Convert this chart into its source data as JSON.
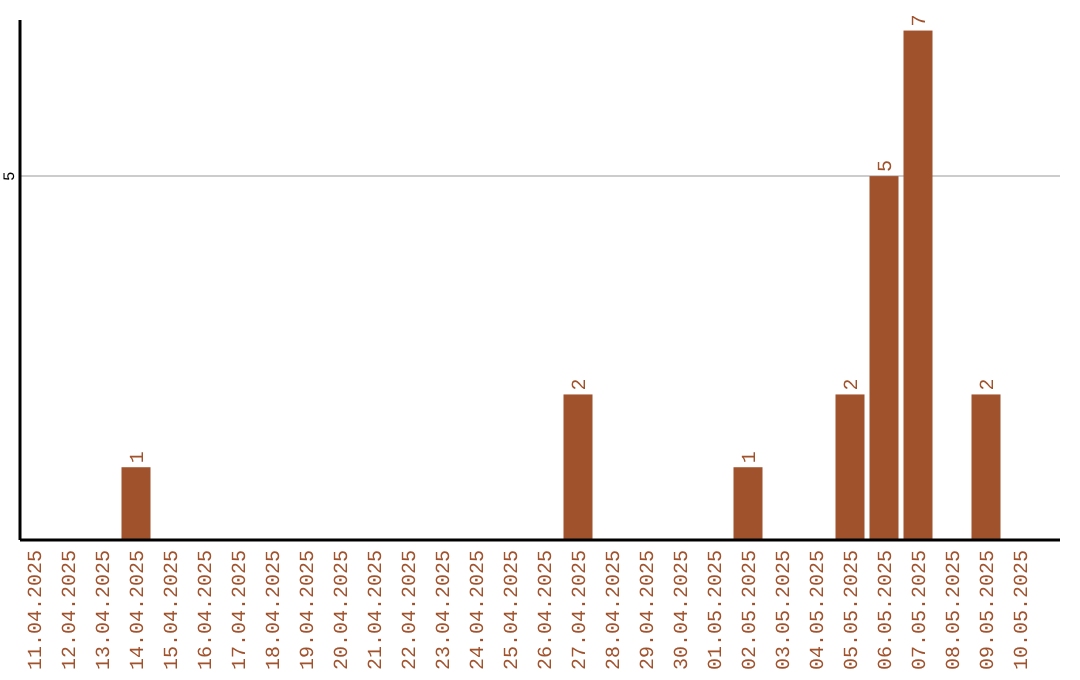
{
  "chart_data": {
    "type": "bar",
    "categories": [
      "11.04.2025",
      "12.04.2025",
      "13.04.2025",
      "14.04.2025",
      "15.04.2025",
      "16.04.2025",
      "17.04.2025",
      "18.04.2025",
      "19.04.2025",
      "20.04.2025",
      "21.04.2025",
      "22.04.2025",
      "23.04.2025",
      "24.04.2025",
      "25.04.2025",
      "26.04.2025",
      "27.04.2025",
      "28.04.2025",
      "29.04.2025",
      "30.04.2025",
      "01.05.2025",
      "02.05.2025",
      "03.05.2025",
      "04.05.2025",
      "05.05.2025",
      "06.05.2025",
      "07.05.2025",
      "08.05.2025",
      "09.05.2025",
      "10.05.2025"
    ],
    "values": [
      0,
      0,
      0,
      1,
      0,
      0,
      0,
      0,
      0,
      0,
      0,
      0,
      0,
      0,
      0,
      0,
      2,
      0,
      0,
      0,
      0,
      1,
      0,
      0,
      2,
      5,
      7,
      0,
      2,
      0
    ],
    "value_labels": [
      null,
      null,
      null,
      "1",
      null,
      null,
      null,
      null,
      null,
      null,
      null,
      null,
      null,
      null,
      null,
      null,
      "2",
      null,
      null,
      null,
      null,
      "1",
      null,
      null,
      "2",
      "5",
      "7",
      null,
      "2",
      null
    ],
    "color": "#a0522d",
    "ylim": [
      0,
      7.2
    ],
    "yticks": [
      5
    ],
    "grid": "y"
  }
}
